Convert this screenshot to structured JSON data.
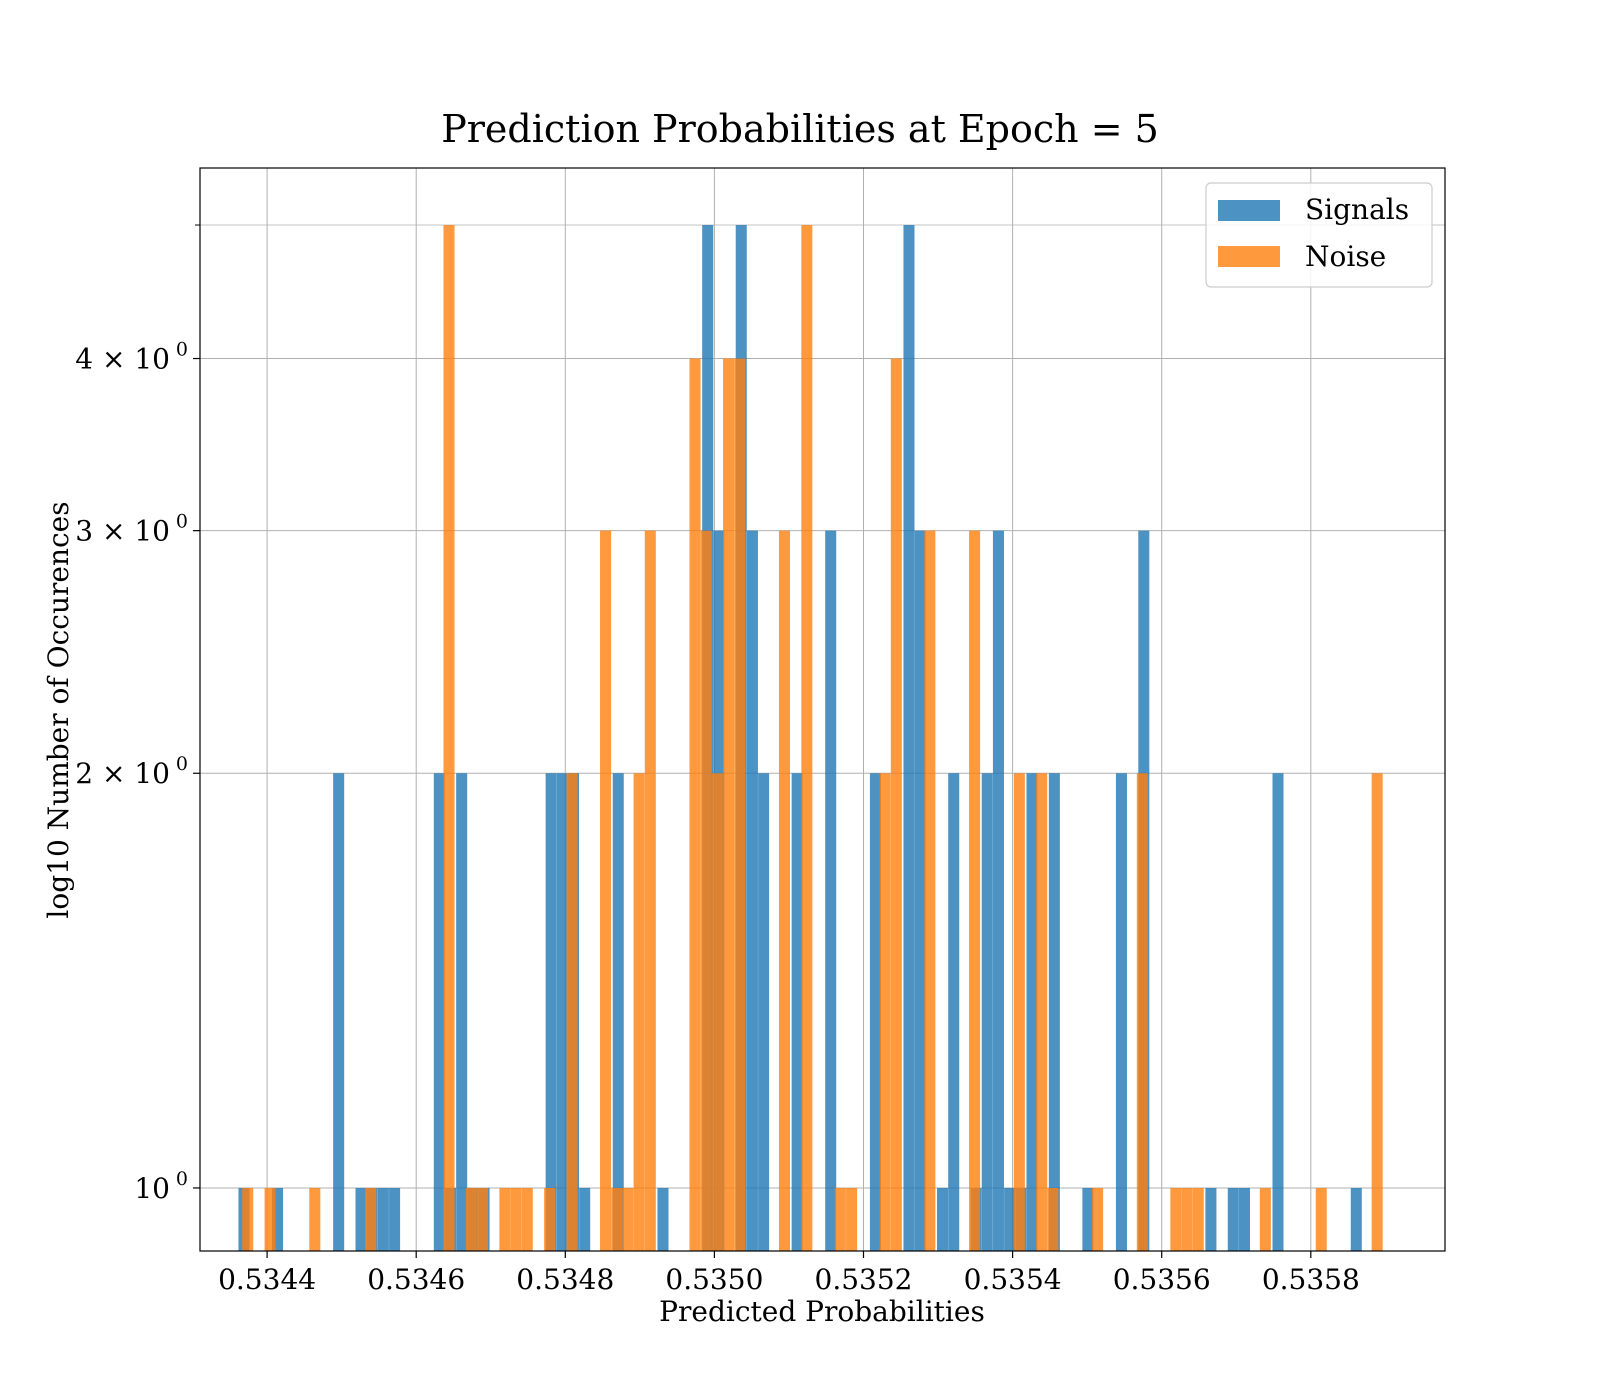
{
  "chart_data": {
    "type": "bar",
    "subtype": "overlapping-histogram",
    "title": "Prediction Probabilities at Epoch = 5",
    "xlabel": "Predicted Probabilities",
    "ylabel": "log10 Number of Occurences",
    "yscale": "log",
    "xlim": [
      0.53431,
      0.53598
    ],
    "ylim": [
      0.9,
      5.5
    ],
    "bin_width": 1.48e-05,
    "x_ticks": [
      0.5344,
      0.5346,
      0.5348,
      0.535,
      0.5352,
      0.5354,
      0.5356,
      0.5358
    ],
    "x_tick_labels": [
      "0.5344",
      "0.5346",
      "0.5348",
      "0.5350",
      "0.5352",
      "0.5354",
      "0.5356",
      "0.5358"
    ],
    "y_ticks": [
      1,
      2,
      3,
      4
    ],
    "y_tick_labels": [
      {
        "base": "10",
        "exp": "0"
      },
      {
        "base": "2 × 10",
        "exp": "0"
      },
      {
        "base": "3 × 10",
        "exp": "0"
      },
      {
        "base": "4 × 10",
        "exp": "0"
      }
    ],
    "grid": true,
    "legend": "top-right",
    "series": [
      {
        "name": "Signals",
        "color": "#1f77b4",
        "bins": [
          {
            "x": 0.534369,
            "count": 1
          },
          {
            "x": 0.534414,
            "count": 1
          },
          {
            "x": 0.534496,
            "count": 2
          },
          {
            "x": 0.534526,
            "count": 1
          },
          {
            "x": 0.534541,
            "count": 1
          },
          {
            "x": 0.534556,
            "count": 1
          },
          {
            "x": 0.534571,
            "count": 1
          },
          {
            "x": 0.534631,
            "count": 2
          },
          {
            "x": 0.534646,
            "count": 1
          },
          {
            "x": 0.534661,
            "count": 2
          },
          {
            "x": 0.534676,
            "count": 1
          },
          {
            "x": 0.534691,
            "count": 1
          },
          {
            "x": 0.534781,
            "count": 2
          },
          {
            "x": 0.534796,
            "count": 2
          },
          {
            "x": 0.534811,
            "count": 2
          },
          {
            "x": 0.534826,
            "count": 1
          },
          {
            "x": 0.534871,
            "count": 2
          },
          {
            "x": 0.534931,
            "count": 1
          },
          {
            "x": 0.534991,
            "count": 5
          },
          {
            "x": 0.535006,
            "count": 3
          },
          {
            "x": 0.535036,
            "count": 5
          },
          {
            "x": 0.535051,
            "count": 3
          },
          {
            "x": 0.535066,
            "count": 2
          },
          {
            "x": 0.535111,
            "count": 2
          },
          {
            "x": 0.535156,
            "count": 3
          },
          {
            "x": 0.535216,
            "count": 2
          },
          {
            "x": 0.535261,
            "count": 5
          },
          {
            "x": 0.535276,
            "count": 3
          },
          {
            "x": 0.535306,
            "count": 1
          },
          {
            "x": 0.535321,
            "count": 2
          },
          {
            "x": 0.535351,
            "count": 1
          },
          {
            "x": 0.535366,
            "count": 2
          },
          {
            "x": 0.535381,
            "count": 3
          },
          {
            "x": 0.535396,
            "count": 1
          },
          {
            "x": 0.535411,
            "count": 1
          },
          {
            "x": 0.535426,
            "count": 2
          },
          {
            "x": 0.535456,
            "count": 2
          },
          {
            "x": 0.535501,
            "count": 1
          },
          {
            "x": 0.535546,
            "count": 2
          },
          {
            "x": 0.535576,
            "count": 3
          },
          {
            "x": 0.535666,
            "count": 1
          },
          {
            "x": 0.535696,
            "count": 1
          },
          {
            "x": 0.535711,
            "count": 1
          },
          {
            "x": 0.535756,
            "count": 2
          },
          {
            "x": 0.535861,
            "count": 1
          }
        ]
      },
      {
        "name": "Noise",
        "color": "#ff7f0e",
        "bins": [
          {
            "x": 0.534374,
            "count": 1
          },
          {
            "x": 0.534404,
            "count": 1
          },
          {
            "x": 0.534464,
            "count": 1
          },
          {
            "x": 0.534539,
            "count": 1
          },
          {
            "x": 0.534644,
            "count": 5
          },
          {
            "x": 0.534674,
            "count": 1
          },
          {
            "x": 0.534689,
            "count": 1
          },
          {
            "x": 0.534719,
            "count": 1
          },
          {
            "x": 0.534734,
            "count": 1
          },
          {
            "x": 0.534749,
            "count": 1
          },
          {
            "x": 0.534779,
            "count": 1
          },
          {
            "x": 0.534809,
            "count": 2
          },
          {
            "x": 0.534854,
            "count": 3
          },
          {
            "x": 0.534869,
            "count": 1
          },
          {
            "x": 0.534884,
            "count": 1
          },
          {
            "x": 0.534899,
            "count": 2
          },
          {
            "x": 0.534914,
            "count": 3
          },
          {
            "x": 0.534974,
            "count": 4
          },
          {
            "x": 0.534989,
            "count": 3
          },
          {
            "x": 0.535004,
            "count": 2
          },
          {
            "x": 0.535019,
            "count": 4
          },
          {
            "x": 0.535034,
            "count": 4
          },
          {
            "x": 0.535094,
            "count": 3
          },
          {
            "x": 0.535124,
            "count": 5
          },
          {
            "x": 0.535169,
            "count": 1
          },
          {
            "x": 0.535184,
            "count": 1
          },
          {
            "x": 0.535229,
            "count": 2
          },
          {
            "x": 0.535244,
            "count": 4
          },
          {
            "x": 0.535289,
            "count": 3
          },
          {
            "x": 0.535349,
            "count": 3
          },
          {
            "x": 0.535409,
            "count": 2
          },
          {
            "x": 0.535439,
            "count": 2
          },
          {
            "x": 0.535454,
            "count": 1
          },
          {
            "x": 0.535514,
            "count": 1
          },
          {
            "x": 0.535574,
            "count": 2
          },
          {
            "x": 0.535619,
            "count": 1
          },
          {
            "x": 0.535634,
            "count": 1
          },
          {
            "x": 0.535649,
            "count": 1
          },
          {
            "x": 0.535739,
            "count": 1
          },
          {
            "x": 0.535814,
            "count": 1
          },
          {
            "x": 0.535889,
            "count": 2
          }
        ]
      }
    ]
  }
}
